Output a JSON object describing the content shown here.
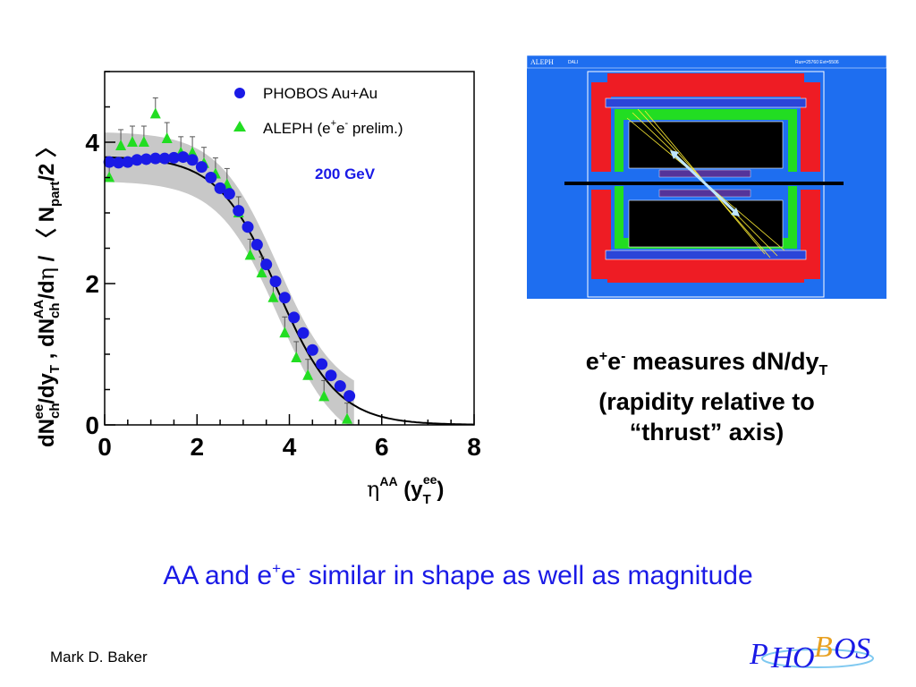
{
  "slide": {
    "caption_parts": [
      "e",
      "+",
      "e",
      "-",
      " measures dN/dy",
      "T"
    ],
    "caption_line2": "(rapidity relative to",
    "caption_line3": "“thrust” axis)",
    "headline_parts": [
      "AA and e",
      "+",
      "e",
      "-",
      " similar in shape as well as magnitude"
    ],
    "author": "Mark D. Baker",
    "logo": {
      "letters": [
        "P",
        "H",
        "O",
        "B",
        "O",
        "S"
      ]
    }
  },
  "event_display": {
    "label": "ALEPH",
    "sublabel": "DALI",
    "run_info": "Run=25760   Evt=5506",
    "colors": {
      "background": "#1e6ef0",
      "calorimeter": "#ee1c24",
      "tracker": "#22dd22",
      "chamber": "#000000",
      "beam": "#000000"
    }
  },
  "chart_data": {
    "type": "scatter",
    "xlabel": "η^AA (y_T^ee)",
    "ylabel": "dN_ch^ee/dy_T , dN_ch^AA/dη / ⟨N_part/2⟩",
    "xlim": [
      0,
      8
    ],
    "ylim": [
      0,
      5
    ],
    "xticks": [
      "0",
      "2",
      "4",
      "6",
      "8"
    ],
    "yticks": [
      "0",
      "2",
      "4"
    ],
    "annotation": "200 GeV",
    "legend_position": "top-right",
    "colors": {
      "phobos": "#1a1ae6",
      "aleph": "#22dd22",
      "band": "#c8c8c8",
      "fit": "#000000"
    },
    "series": [
      {
        "name": "PHOBOS Au+Au",
        "marker": "circle",
        "x": [
          0.1,
          0.3,
          0.5,
          0.7,
          0.9,
          1.1,
          1.3,
          1.5,
          1.7,
          1.9,
          2.1,
          2.3,
          2.5,
          2.7,
          2.9,
          3.1,
          3.3,
          3.5,
          3.7,
          3.9,
          4.1,
          4.3,
          4.5,
          4.7,
          4.9,
          5.1,
          5.3
        ],
        "y": [
          3.72,
          3.71,
          3.72,
          3.75,
          3.76,
          3.77,
          3.77,
          3.78,
          3.79,
          3.75,
          3.65,
          3.5,
          3.35,
          3.27,
          3.03,
          2.8,
          2.55,
          2.27,
          2.03,
          1.8,
          1.52,
          1.3,
          1.06,
          0.86,
          0.7,
          0.55,
          0.41
        ]
      },
      {
        "name": "ALEPH (e+e- prelim.)",
        "marker": "triangle",
        "x": [
          0.1,
          0.35,
          0.6,
          0.85,
          1.1,
          1.35,
          1.65,
          1.9,
          2.15,
          2.4,
          2.65,
          2.9,
          3.15,
          3.4,
          3.65,
          3.9,
          4.15,
          4.4,
          4.75,
          5.25
        ],
        "y": [
          3.5,
          3.95,
          4.0,
          4.0,
          4.4,
          4.05,
          3.85,
          3.85,
          3.7,
          3.55,
          3.4,
          3.0,
          2.4,
          2.15,
          1.8,
          1.3,
          0.95,
          0.7,
          0.4,
          0.08
        ]
      }
    ],
    "fit_curve": {
      "plateau": 3.8,
      "midpoint": 3.75,
      "width": 0.65
    },
    "band_halfwidth": 0.35
  }
}
